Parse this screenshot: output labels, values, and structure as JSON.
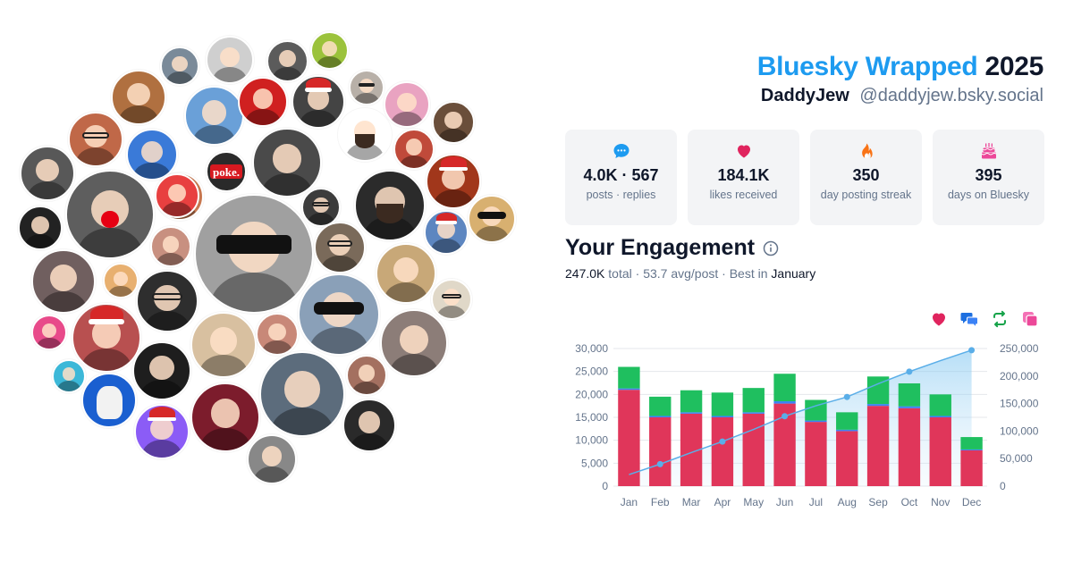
{
  "header": {
    "brand": "Bluesky Wrapped",
    "year": "2025",
    "display_name": "DaddyJew",
    "handle": "@daddyjew.bsky.social"
  },
  "stats": [
    {
      "icon": "speech-bubble-icon",
      "value": "4.0K · 567",
      "label": "posts · replies",
      "color": "#1d9bf0"
    },
    {
      "icon": "heart-icon",
      "value": "184.1K",
      "label": "likes received",
      "color": "#e0245e"
    },
    {
      "icon": "fire-icon",
      "value": "350",
      "label": "day posting streak",
      "color": "#f97316"
    },
    {
      "icon": "cake-icon",
      "value": "395",
      "label": "days on Bluesky",
      "color": "#ec4899"
    }
  ],
  "engagement": {
    "title": "Your Engagement",
    "total_value": "247.0K",
    "total_label": "total",
    "sep1": "·",
    "avg": "53.7 avg/post",
    "sep2": "·",
    "best_label": "Best in",
    "best_month": "January"
  },
  "legend": [
    {
      "icon": "heart-icon",
      "color": "#e0245e"
    },
    {
      "icon": "quote-bubbles-icon",
      "color": "#1d6fe0"
    },
    {
      "icon": "repost-icon",
      "color": "#16a34a"
    },
    {
      "icon": "quote-icon",
      "color": "#ec4899"
    }
  ],
  "chart_data": {
    "type": "bar",
    "categories": [
      "Jan",
      "Feb",
      "Mar",
      "Apr",
      "May",
      "Jun",
      "Jul",
      "Aug",
      "Sep",
      "Oct",
      "Nov",
      "Dec"
    ],
    "series": [
      {
        "values": [
          21000,
          15000,
          15800,
          15000,
          15800,
          18000,
          14000,
          12000,
          17500,
          17000,
          15000,
          7800
        ],
        "color": "#e0365a"
      },
      {
        "values": [
          300,
          300,
          300,
          300,
          300,
          500,
          300,
          300,
          400,
          400,
          300,
          200
        ],
        "color": "#3b82f6"
      },
      {
        "values": [
          4700,
          4200,
          4800,
          5100,
          5300,
          6000,
          4500,
          3800,
          6000,
          5000,
          4700,
          2700
        ],
        "color": "#1fbf5f"
      }
    ],
    "cumulative": {
      "values": [
        21000,
        40000,
        61000,
        81000,
        103000,
        127000,
        146000,
        162000,
        186000,
        208000,
        228000,
        247000
      ],
      "color": "#5aaee8"
    },
    "ylim": [
      0,
      30000
    ],
    "y2lim": [
      0,
      250000
    ],
    "yticks": [
      0,
      5000,
      10000,
      15000,
      20000,
      25000,
      30000
    ],
    "ytick_labels": [
      "0",
      "5,000",
      "10,000",
      "15,000",
      "20,000",
      "25,000",
      "30,000"
    ],
    "y2ticks": [
      0,
      50000,
      100000,
      150000,
      200000,
      250000
    ],
    "y2tick_labels": [
      "0",
      "50,000",
      "100,000",
      "150,000",
      "200,000",
      "250,000"
    ],
    "grid": true
  },
  "avatars": [
    {
      "color": "#7a8a99",
      "kind": "face"
    },
    {
      "color": "#cfcfcf",
      "kind": "face"
    },
    {
      "color": "#5b5b5b",
      "kind": "face"
    },
    {
      "color": "#9bc23b",
      "kind": "face"
    },
    {
      "color": "#b07040",
      "kind": "face"
    },
    {
      "color": "#6aa0d8",
      "kind": "face"
    },
    {
      "color": "#444444",
      "kind": "santa"
    },
    {
      "color": "#b8b0a8",
      "kind": "glasses"
    },
    {
      "color": "#d02020",
      "kind": "face"
    },
    {
      "color": "#ffffff",
      "kind": "beard"
    },
    {
      "color": "#e9a3c1",
      "kind": "face"
    },
    {
      "color": "#6a4e3a",
      "kind": "face"
    },
    {
      "color": "#c06848",
      "kind": "glasses"
    },
    {
      "color": "#3a7ad8",
      "kind": "face"
    },
    {
      "color": "#4a4a4a",
      "kind": "face"
    },
    {
      "color": "#c04a3a",
      "kind": "face"
    },
    {
      "color": "#2a2a2a",
      "kind": "poke"
    },
    {
      "color": "#c87850",
      "kind": "face"
    },
    {
      "color": "#2b2b2b",
      "kind": "beard"
    },
    {
      "color": "#a1371b",
      "kind": "santa"
    },
    {
      "color": "#585858",
      "kind": "face"
    },
    {
      "color": "#5e5e5e",
      "kind": "reindeer"
    },
    {
      "color": "#e84040",
      "kind": "face"
    },
    {
      "color": "#a0a0a0",
      "kind": "shades"
    },
    {
      "color": "#3c3c3c",
      "kind": "glasses"
    },
    {
      "color": "#222222",
      "kind": "face"
    },
    {
      "color": "#d8b070",
      "kind": "shades"
    },
    {
      "color": "#5d86c0",
      "kind": "santa"
    },
    {
      "color": "#c89080",
      "kind": "face"
    },
    {
      "color": "#7a6a5a",
      "kind": "glasses"
    },
    {
      "color": "#c8a878",
      "kind": "face"
    },
    {
      "color": "#705f5f",
      "kind": "face"
    },
    {
      "color": "#e8b070",
      "kind": "face"
    },
    {
      "color": "#2e2e2e",
      "kind": "glasses"
    },
    {
      "color": "#e84a8a",
      "kind": "face"
    },
    {
      "color": "#b85050",
      "kind": "santa"
    },
    {
      "color": "#8aa0b8",
      "kind": "shades"
    },
    {
      "color": "#e0d8c8",
      "kind": "glasses"
    },
    {
      "color": "#d8c0a0",
      "kind": "face"
    },
    {
      "color": "#c88878",
      "kind": "face"
    },
    {
      "color": "#8c7d78",
      "kind": "face"
    },
    {
      "color": "#1e1e1e",
      "kind": "face"
    },
    {
      "color": "#a47060",
      "kind": "face"
    },
    {
      "color": "#3cb8d8",
      "kind": "face"
    },
    {
      "color": "#1a5fd0",
      "kind": "cat"
    },
    {
      "color": "#7c1c2c",
      "kind": "face"
    },
    {
      "color": "#5c6c7c",
      "kind": "face"
    },
    {
      "color": "#2a2a2a",
      "kind": "face"
    },
    {
      "color": "#8b5cf6",
      "kind": "santa"
    },
    {
      "color": "#888888",
      "kind": "face"
    }
  ]
}
